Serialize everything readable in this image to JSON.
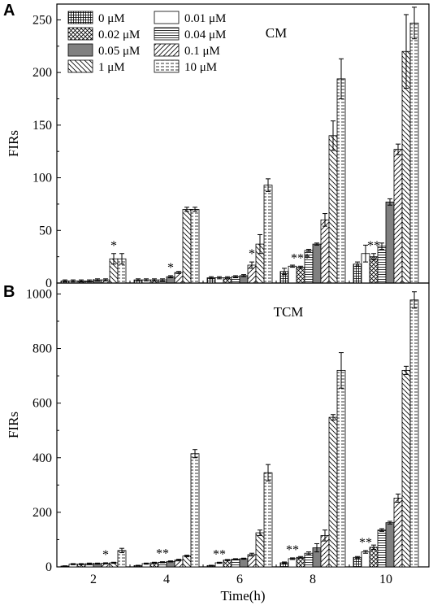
{
  "colors": {
    "axis": "#000000",
    "bar_stroke": "#000000",
    "solid_fill": "#808080",
    "background": "#ffffff"
  },
  "legend": {
    "placement": "top-left, two columns",
    "entries": [
      {
        "label": "0 μM",
        "pattern": "grid"
      },
      {
        "label": "0.01 μM",
        "pattern": "none"
      },
      {
        "label": "0.02 μM",
        "pattern": "crosshatch"
      },
      {
        "label": "0.04 μM",
        "pattern": "horizontal"
      },
      {
        "label": "0.05 μM",
        "pattern": "solid-gray"
      },
      {
        "label": "0.1 μM",
        "pattern": "diag-up"
      },
      {
        "label": "1 μM",
        "pattern": "diag-down"
      },
      {
        "label": "10 μM",
        "pattern": "horizontal-dashed"
      }
    ]
  },
  "x_axis": {
    "label": "Time(h)",
    "ticks": [
      "2",
      "4",
      "6",
      "8",
      "10"
    ]
  },
  "chart_data": [
    {
      "type": "bar",
      "panel_letter": "A",
      "annotation": "CM",
      "ylabel": "FIRs",
      "xlabel": "",
      "ylim": [
        0,
        265
      ],
      "yticks": [
        0,
        50,
        100,
        150,
        200,
        250
      ],
      "grid": false,
      "categories": [
        "2",
        "4",
        "6",
        "8",
        "10"
      ],
      "series": [
        {
          "name": "0 μM",
          "values": [
            2,
            3,
            5,
            11,
            18
          ],
          "errors": [
            1,
            1,
            1,
            3,
            2
          ]
        },
        {
          "name": "0.01 μM",
          "values": [
            2,
            3,
            5,
            16,
            28
          ],
          "errors": [
            1,
            1,
            1,
            1,
            8
          ]
        },
        {
          "name": "0.02 μM",
          "values": [
            2,
            3,
            5,
            15,
            25
          ],
          "errors": [
            1,
            1,
            1,
            1,
            3
          ]
        },
        {
          "name": "0.04 μM",
          "values": [
            2,
            3,
            6,
            31,
            35
          ],
          "errors": [
            1,
            1,
            1,
            1,
            3
          ]
        },
        {
          "name": "0.05 μM",
          "values": [
            3,
            6,
            7,
            37,
            77
          ],
          "errors": [
            1,
            1,
            1,
            1,
            3
          ]
        },
        {
          "name": "0.1 μM",
          "values": [
            3,
            10,
            17,
            60,
            127
          ],
          "errors": [
            1,
            1,
            3,
            6,
            5
          ]
        },
        {
          "name": "1 μM",
          "values": [
            23,
            70,
            37,
            140,
            220
          ],
          "errors": [
            5,
            2,
            9,
            14,
            35
          ]
        },
        {
          "name": "10 μM",
          "values": [
            23,
            70,
            93,
            194,
            247
          ],
          "errors": [
            5,
            2,
            6,
            19,
            15
          ]
        }
      ],
      "stars": [
        {
          "category": "2",
          "text": "*",
          "over_series": 6
        },
        {
          "category": "4",
          "text": "*",
          "over_series": 4
        },
        {
          "category": "6",
          "text": "*",
          "over_series": 5
        },
        {
          "category": "8",
          "text": "***",
          "over_series": 2
        },
        {
          "category": "10",
          "text": "**",
          "over_series": 2
        }
      ]
    },
    {
      "type": "bar",
      "panel_letter": "B",
      "annotation": "TCM",
      "ylabel": "FIRs",
      "xlabel": "Time(h)",
      "ylim": [
        0,
        1040
      ],
      "yticks": [
        0,
        200,
        400,
        600,
        800,
        1000
      ],
      "grid": false,
      "categories": [
        "2",
        "4",
        "6",
        "8",
        "10"
      ],
      "series": [
        {
          "name": "0 μM",
          "values": [
            3,
            5,
            5,
            15,
            35
          ],
          "errors": [
            1,
            1,
            1,
            3,
            3
          ]
        },
        {
          "name": "0.01 μM",
          "values": [
            10,
            12,
            15,
            30,
            55
          ],
          "errors": [
            2,
            2,
            2,
            3,
            5
          ]
        },
        {
          "name": "0.02 μM",
          "values": [
            10,
            15,
            25,
            35,
            72
          ],
          "errors": [
            2,
            2,
            2,
            3,
            8
          ]
        },
        {
          "name": "0.04 μM",
          "values": [
            12,
            17,
            28,
            50,
            135
          ],
          "errors": [
            2,
            2,
            2,
            5,
            5
          ]
        },
        {
          "name": "0.05 μM",
          "values": [
            12,
            20,
            30,
            70,
            162
          ],
          "errors": [
            2,
            2,
            2,
            15,
            5
          ]
        },
        {
          "name": "0.1 μM",
          "values": [
            13,
            25,
            45,
            115,
            252
          ],
          "errors": [
            2,
            3,
            5,
            20,
            15
          ]
        },
        {
          "name": "1 μM",
          "values": [
            15,
            40,
            125,
            548,
            720
          ],
          "errors": [
            2,
            3,
            10,
            10,
            15
          ]
        },
        {
          "name": "10 μM",
          "values": [
            60,
            415,
            345,
            720,
            978
          ],
          "errors": [
            8,
            15,
            30,
            65,
            30
          ]
        }
      ],
      "stars": [
        {
          "category": "2",
          "text": "*",
          "over_series": 5
        },
        {
          "category": "4",
          "text": "**",
          "over_series": 3
        },
        {
          "category": "6",
          "text": "**",
          "over_series": 1
        },
        {
          "category": "8",
          "text": "**",
          "over_series": 1
        },
        {
          "category": "10",
          "text": "**",
          "over_series": 1
        }
      ]
    }
  ]
}
